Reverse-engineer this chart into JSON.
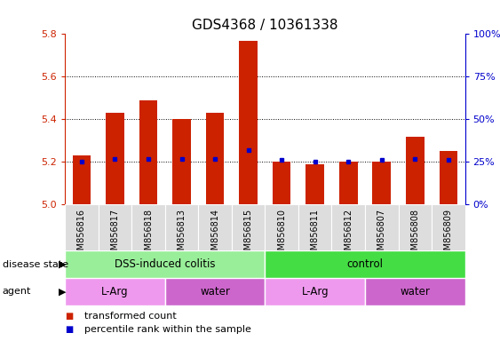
{
  "title": "GDS4368 / 10361338",
  "samples": [
    "GSM856816",
    "GSM856817",
    "GSM856818",
    "GSM856813",
    "GSM856814",
    "GSM856815",
    "GSM856810",
    "GSM856811",
    "GSM856812",
    "GSM856807",
    "GSM856808",
    "GSM856809"
  ],
  "transformed_count": [
    5.23,
    5.43,
    5.49,
    5.4,
    5.43,
    5.77,
    5.2,
    5.19,
    5.2,
    5.2,
    5.32,
    5.25
  ],
  "percentile_rank": [
    25,
    27,
    27,
    27,
    27,
    32,
    26,
    25,
    25,
    26,
    27,
    26
  ],
  "ylim_left": [
    5.0,
    5.8
  ],
  "ylim_right": [
    0,
    100
  ],
  "yticks_left": [
    5.0,
    5.2,
    5.4,
    5.6,
    5.8
  ],
  "yticks_right": [
    0,
    25,
    50,
    75,
    100
  ],
  "bar_color": "#cc2200",
  "dot_color": "#0000cc",
  "disease_state_groups": [
    {
      "label": "DSS-induced colitis",
      "start": 0,
      "end": 6,
      "color": "#99ee99"
    },
    {
      "label": "control",
      "start": 6,
      "end": 12,
      "color": "#44dd44"
    }
  ],
  "agent_groups": [
    {
      "label": "L-Arg",
      "start": 0,
      "end": 3,
      "color": "#ee99ee"
    },
    {
      "label": "water",
      "start": 3,
      "end": 6,
      "color": "#cc66cc"
    },
    {
      "label": "L-Arg",
      "start": 6,
      "end": 9,
      "color": "#ee99ee"
    },
    {
      "label": "water",
      "start": 9,
      "end": 12,
      "color": "#cc66cc"
    }
  ],
  "legend_items": [
    {
      "label": "transformed count",
      "color": "#cc2200"
    },
    {
      "label": "percentile rank within the sample",
      "color": "#0000cc"
    }
  ],
  "disease_state_label": "disease state",
  "agent_label": "agent",
  "left_axis_color": "#cc2200",
  "right_axis_color": "#0000cc",
  "bar_bottom": 5.0,
  "bar_width": 0.55,
  "tick_label_bg": "#dddddd",
  "tick_label_fontsize": 7,
  "title_fontsize": 11
}
